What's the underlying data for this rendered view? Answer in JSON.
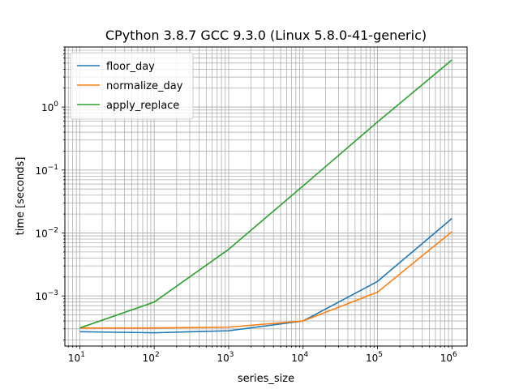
{
  "chart_data": {
    "type": "line",
    "title": "CPython 3.8.7 GCC 9.3.0 (Linux 5.8.0-41-generic)",
    "xlabel": "series_size",
    "ylabel": "time [seconds]",
    "xscale": "log",
    "yscale": "log",
    "xlim": [
      6.3,
      1600000.0
    ],
    "ylim": [
      0.00016,
      9.0
    ],
    "grid": true,
    "legend_position": "top-left",
    "x": [
      10,
      100,
      1000,
      10000,
      100000,
      1000000
    ],
    "x_ticks": [
      {
        "value": 10,
        "base": "10",
        "exp": "1"
      },
      {
        "value": 100,
        "base": "10",
        "exp": "2"
      },
      {
        "value": 1000,
        "base": "10",
        "exp": "3"
      },
      {
        "value": 10000,
        "base": "10",
        "exp": "4"
      },
      {
        "value": 100000,
        "base": "10",
        "exp": "5"
      },
      {
        "value": 1000000,
        "base": "10",
        "exp": "6"
      }
    ],
    "y_ticks": [
      {
        "value": 0.001,
        "base": "10",
        "exp": "−3"
      },
      {
        "value": 0.01,
        "base": "10",
        "exp": "−2"
      },
      {
        "value": 0.1,
        "base": "10",
        "exp": "−1"
      },
      {
        "value": 1,
        "base": "10",
        "exp": "0"
      }
    ],
    "series": [
      {
        "name": "floor_day",
        "color": "#1f77b4",
        "values": [
          0.00027,
          0.00026,
          0.00028,
          0.0004,
          0.0017,
          0.017
        ]
      },
      {
        "name": "normalize_day",
        "color": "#ff7f0e",
        "values": [
          0.00031,
          0.00031,
          0.00032,
          0.0004,
          0.00115,
          0.0105
        ]
      },
      {
        "name": "apply_replace",
        "color": "#2ca02c",
        "values": [
          0.00031,
          0.0008,
          0.0055,
          0.056,
          0.58,
          5.6
        ]
      }
    ]
  }
}
